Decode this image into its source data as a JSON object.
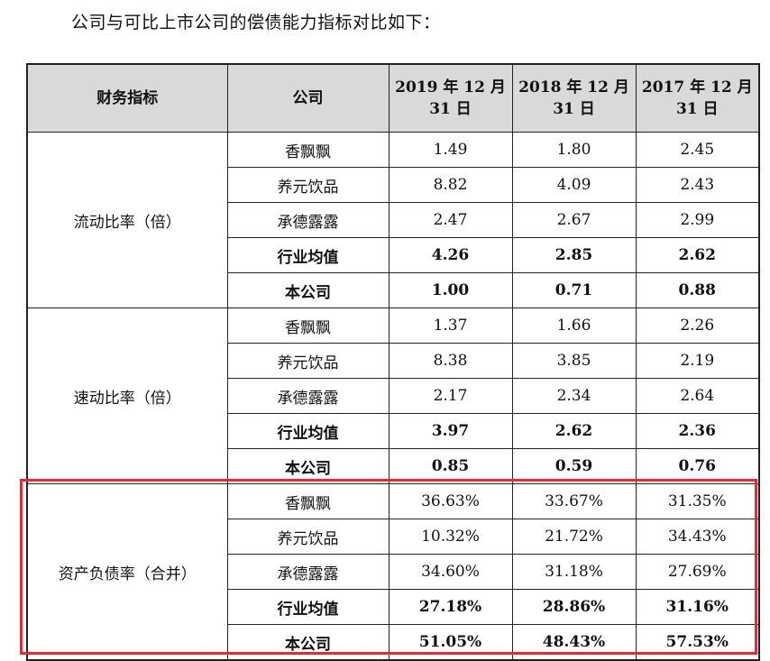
{
  "intro": "公司与可比上市公司的偿债能力指标对比如下：",
  "headers": {
    "metric": "财务指标",
    "company": "公司",
    "y2019": [
      "2019 年 12 月",
      "31 日"
    ],
    "y2018": [
      "2018 年 12 月",
      "31 日"
    ],
    "y2017": [
      "2017 年 12 月",
      "31 日"
    ]
  },
  "groups": [
    {
      "metric": "流动比率（倍）",
      "rows": [
        {
          "company": "香飘飘",
          "v": [
            "1.49",
            "1.80",
            "2.45"
          ],
          "bold": false
        },
        {
          "company": "养元饮品",
          "v": [
            "8.82",
            "4.09",
            "2.43"
          ],
          "bold": false
        },
        {
          "company": "承德露露",
          "v": [
            "2.47",
            "2.67",
            "2.99"
          ],
          "bold": false
        },
        {
          "company": "行业均值",
          "v": [
            "4.26",
            "2.85",
            "2.62"
          ],
          "bold": true
        },
        {
          "company": "本公司",
          "v": [
            "1.00",
            "0.71",
            "0.88"
          ],
          "bold": true
        }
      ]
    },
    {
      "metric": "速动比率（倍）",
      "rows": [
        {
          "company": "香飘飘",
          "v": [
            "1.37",
            "1.66",
            "2.26"
          ],
          "bold": false
        },
        {
          "company": "养元饮品",
          "v": [
            "8.38",
            "3.85",
            "2.19"
          ],
          "bold": false
        },
        {
          "company": "承德露露",
          "v": [
            "2.17",
            "2.34",
            "2.64"
          ],
          "bold": false
        },
        {
          "company": "行业均值",
          "v": [
            "3.97",
            "2.62",
            "2.36"
          ],
          "bold": true
        },
        {
          "company": "本公司",
          "v": [
            "0.85",
            "0.59",
            "0.76"
          ],
          "bold": true
        }
      ]
    },
    {
      "metric": "资产负债率（合并）",
      "rows": [
        {
          "company": "香飘飘",
          "v": [
            "36.63%",
            "33.67%",
            "31.35%"
          ],
          "bold": false
        },
        {
          "company": "养元饮品",
          "v": [
            "10.32%",
            "21.72%",
            "34.43%"
          ],
          "bold": false
        },
        {
          "company": "承德露露",
          "v": [
            "34.60%",
            "31.18%",
            "27.69%"
          ],
          "bold": false
        },
        {
          "company": "行业均值",
          "v": [
            "27.18%",
            "28.86%",
            "31.16%"
          ],
          "bold": true
        },
        {
          "company": "本公司",
          "v": [
            "51.05%",
            "48.43%",
            "57.53%"
          ],
          "bold": true
        }
      ]
    }
  ],
  "highlight_color": "#f0262e"
}
